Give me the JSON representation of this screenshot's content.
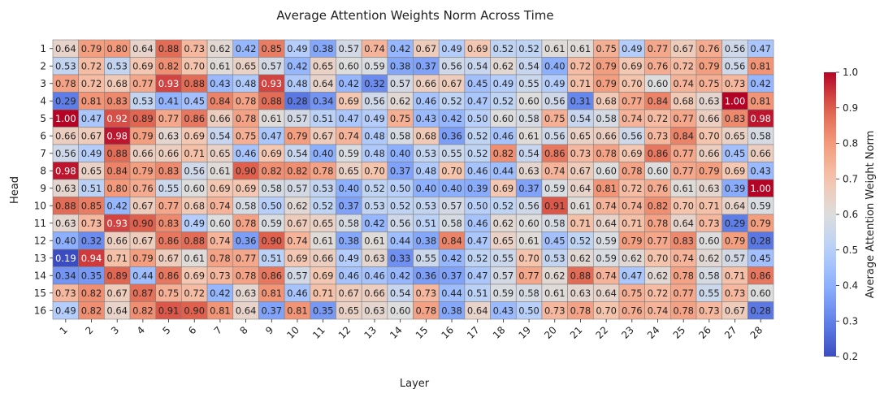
{
  "chart_data": {
    "type": "heatmap",
    "title": "Average Attention Weights Norm Across Time",
    "xlabel": "Layer",
    "ylabel": "Head",
    "colorbar_label": "Average Attention Weight Norm",
    "colormap": "coolwarm",
    "colorbar_range": [
      0.2,
      1.0
    ],
    "colorbar_ticks": [
      "0.2",
      "0.3",
      "0.4",
      "0.5",
      "0.6",
      "0.7",
      "0.8",
      "0.9",
      "1.0"
    ],
    "x_categories": [
      "1",
      "2",
      "3",
      "4",
      "5",
      "6",
      "7",
      "8",
      "9",
      "10",
      "11",
      "12",
      "13",
      "14",
      "15",
      "16",
      "17",
      "18",
      "19",
      "20",
      "21",
      "22",
      "23",
      "24",
      "25",
      "26",
      "27",
      "28"
    ],
    "y_categories": [
      "1",
      "2",
      "3",
      "4",
      "5",
      "6",
      "7",
      "8",
      "9",
      "10",
      "11",
      "12",
      "13",
      "14",
      "15",
      "16"
    ],
    "values": [
      [
        0.64,
        0.79,
        0.8,
        0.64,
        0.88,
        0.73,
        0.62,
        0.42,
        0.85,
        0.49,
        0.38,
        0.57,
        0.74,
        0.42,
        0.67,
        0.49,
        0.69,
        0.52,
        0.52,
        0.61,
        0.61,
        0.75,
        0.49,
        0.77,
        0.67,
        0.76,
        0.56,
        0.47
      ],
      [
        0.53,
        0.72,
        0.53,
        0.69,
        0.82,
        0.7,
        0.61,
        0.65,
        0.57,
        0.42,
        0.65,
        0.6,
        0.59,
        0.38,
        0.37,
        0.56,
        0.54,
        0.62,
        0.54,
        0.4,
        0.72,
        0.79,
        0.69,
        0.76,
        0.72,
        0.79,
        0.56,
        0.81
      ],
      [
        0.78,
        0.72,
        0.68,
        0.77,
        0.93,
        0.88,
        0.43,
        0.48,
        0.93,
        0.48,
        0.64,
        0.42,
        0.32,
        0.57,
        0.66,
        0.67,
        0.45,
        0.49,
        0.55,
        0.49,
        0.71,
        0.79,
        0.7,
        0.6,
        0.74,
        0.75,
        0.73,
        0.42
      ],
      [
        0.29,
        0.81,
        0.83,
        0.53,
        0.41,
        0.45,
        0.84,
        0.78,
        0.88,
        0.28,
        0.34,
        0.69,
        0.56,
        0.62,
        0.46,
        0.52,
        0.47,
        0.52,
        0.6,
        0.56,
        0.31,
        0.68,
        0.77,
        0.84,
        0.68,
        0.63,
        1.0,
        0.81
      ],
      [
        1.0,
        0.47,
        0.92,
        0.89,
        0.77,
        0.86,
        0.66,
        0.78,
        0.61,
        0.57,
        0.51,
        0.47,
        0.49,
        0.75,
        0.43,
        0.42,
        0.5,
        0.6,
        0.58,
        0.75,
        0.54,
        0.58,
        0.74,
        0.72,
        0.77,
        0.66,
        0.83,
        0.98
      ],
      [
        0.66,
        0.67,
        0.98,
        0.79,
        0.63,
        0.69,
        0.54,
        0.75,
        0.47,
        0.79,
        0.67,
        0.74,
        0.48,
        0.58,
        0.68,
        0.36,
        0.52,
        0.46,
        0.61,
        0.56,
        0.65,
        0.66,
        0.56,
        0.73,
        0.84,
        0.7,
        0.65,
        0.58
      ],
      [
        0.56,
        0.49,
        0.88,
        0.66,
        0.66,
        0.71,
        0.65,
        0.46,
        0.69,
        0.54,
        0.4,
        0.59,
        0.48,
        0.4,
        0.53,
        0.55,
        0.52,
        0.82,
        0.54,
        0.86,
        0.73,
        0.78,
        0.69,
        0.86,
        0.77,
        0.66,
        0.45,
        0.66
      ],
      [
        0.98,
        0.65,
        0.84,
        0.79,
        0.83,
        0.56,
        0.61,
        0.9,
        0.82,
        0.82,
        0.78,
        0.65,
        0.7,
        0.37,
        0.48,
        0.7,
        0.46,
        0.44,
        0.63,
        0.74,
        0.67,
        0.6,
        0.78,
        0.6,
        0.77,
        0.79,
        0.69,
        0.43
      ],
      [
        0.63,
        0.51,
        0.8,
        0.76,
        0.55,
        0.6,
        0.69,
        0.69,
        0.58,
        0.57,
        0.53,
        0.4,
        0.52,
        0.5,
        0.4,
        0.4,
        0.39,
        0.69,
        0.37,
        0.59,
        0.64,
        0.81,
        0.72,
        0.76,
        0.61,
        0.63,
        0.39,
        1.0
      ],
      [
        0.88,
        0.85,
        0.42,
        0.67,
        0.77,
        0.68,
        0.74,
        0.58,
        0.5,
        0.62,
        0.52,
        0.37,
        0.53,
        0.52,
        0.53,
        0.57,
        0.5,
        0.52,
        0.56,
        0.91,
        0.61,
        0.74,
        0.74,
        0.82,
        0.7,
        0.71,
        0.64,
        0.59
      ],
      [
        0.63,
        0.73,
        0.93,
        0.9,
        0.83,
        0.49,
        0.6,
        0.78,
        0.59,
        0.67,
        0.65,
        0.58,
        0.42,
        0.56,
        0.51,
        0.58,
        0.46,
        0.62,
        0.6,
        0.58,
        0.71,
        0.64,
        0.71,
        0.78,
        0.64,
        0.73,
        0.29,
        0.79
      ],
      [
        0.4,
        0.32,
        0.66,
        0.67,
        0.86,
        0.88,
        0.74,
        0.36,
        0.9,
        0.74,
        0.61,
        0.38,
        0.61,
        0.44,
        0.38,
        0.84,
        0.47,
        0.65,
        0.61,
        0.45,
        0.52,
        0.59,
        0.79,
        0.77,
        0.83,
        0.6,
        0.79,
        0.28
      ],
      [
        0.19,
        0.94,
        0.71,
        0.79,
        0.67,
        0.61,
        0.78,
        0.77,
        0.51,
        0.69,
        0.66,
        0.49,
        0.63,
        0.33,
        0.55,
        0.42,
        0.52,
        0.55,
        0.7,
        0.53,
        0.62,
        0.59,
        0.62,
        0.7,
        0.74,
        0.62,
        0.57,
        0.45
      ],
      [
        0.34,
        0.35,
        0.89,
        0.44,
        0.86,
        0.69,
        0.73,
        0.78,
        0.86,
        0.57,
        0.69,
        0.46,
        0.46,
        0.42,
        0.36,
        0.37,
        0.47,
        0.57,
        0.77,
        0.62,
        0.88,
        0.74,
        0.47,
        0.62,
        0.78,
        0.58,
        0.71,
        0.86
      ],
      [
        0.73,
        0.82,
        0.67,
        0.87,
        0.75,
        0.72,
        0.42,
        0.63,
        0.81,
        0.46,
        0.71,
        0.67,
        0.66,
        0.54,
        0.73,
        0.44,
        0.51,
        0.59,
        0.58,
        0.61,
        0.63,
        0.64,
        0.75,
        0.72,
        0.77,
        0.55,
        0.73,
        0.6
      ],
      [
        0.49,
        0.82,
        0.64,
        0.82,
        0.91,
        0.9,
        0.81,
        0.64,
        0.37,
        0.81,
        0.35,
        0.65,
        0.63,
        0.6,
        0.78,
        0.38,
        0.64,
        0.43,
        0.5,
        0.73,
        0.78,
        0.7,
        0.76,
        0.74,
        0.78,
        0.73,
        0.67,
        0.28
      ]
    ]
  }
}
